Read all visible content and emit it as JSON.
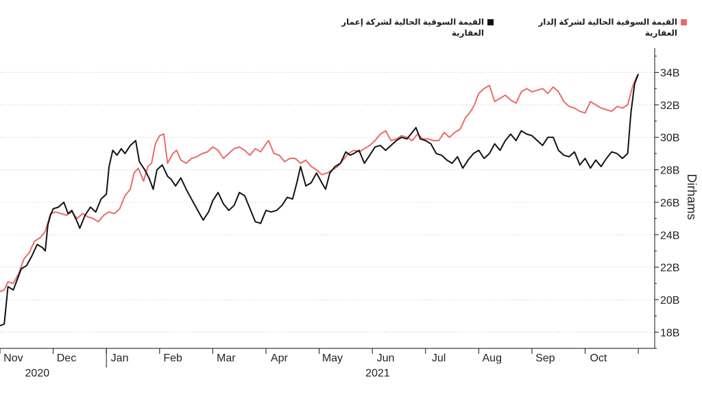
{
  "legend": {
    "black_label": "القيمة السوقية الحالية لشركة إعمار العقارية",
    "red_label": "القيمة السوقية الحالية لشركة إلدار العقارية"
  },
  "colors": {
    "black_series": "#111111",
    "red_series": "#ea6a6a",
    "axis": "#111111"
  },
  "chart_data": {
    "type": "line",
    "title": "",
    "xlabel": "",
    "ylabel": "Dirhams",
    "y_axis_side": "right",
    "ylim": [
      17,
      35.5
    ],
    "xlim": [
      0,
      12.05
    ],
    "x_unit_note": "x measured in months from 1 Nov 2020",
    "y_ticks": [
      18,
      20,
      22,
      24,
      26,
      28,
      30,
      32,
      34
    ],
    "y_tick_labels": [
      "18B",
      "20B",
      "22B",
      "24B",
      "26B",
      "28B",
      "30B",
      "32B",
      "34B"
    ],
    "x_ticks": [
      {
        "x": 0.25,
        "label": "Nov"
      },
      {
        "x": 1.25,
        "label": "Dec"
      },
      {
        "x": 2.25,
        "label": "Jan"
      },
      {
        "x": 3.25,
        "label": "Feb"
      },
      {
        "x": 4.25,
        "label": "Mar"
      },
      {
        "x": 5.25,
        "label": "Apr"
      },
      {
        "x": 6.25,
        "label": "May"
      },
      {
        "x": 7.25,
        "label": "Jun"
      },
      {
        "x": 8.25,
        "label": "Jul"
      },
      {
        "x": 9.25,
        "label": "Aug"
      },
      {
        "x": 10.25,
        "label": "Sep"
      },
      {
        "x": 11.25,
        "label": "Oct"
      }
    ],
    "year_labels": [
      {
        "x": 0.7,
        "label": "2020"
      },
      {
        "x": 7.1,
        "label": "2021"
      }
    ],
    "series": [
      {
        "name": "القيمة السوقية الحالية لشركة إعمار العقارية",
        "color": "#111111",
        "points": [
          [
            0.0,
            18.4
          ],
          [
            0.08,
            18.5
          ],
          [
            0.15,
            20.8
          ],
          [
            0.25,
            20.6
          ],
          [
            0.32,
            21.2
          ],
          [
            0.4,
            21.9
          ],
          [
            0.5,
            22.1
          ],
          [
            0.6,
            22.7
          ],
          [
            0.7,
            23.4
          ],
          [
            0.8,
            23.2
          ],
          [
            0.85,
            23.0
          ],
          [
            0.9,
            24.6
          ],
          [
            0.95,
            25.2
          ],
          [
            1.0,
            25.6
          ],
          [
            1.1,
            25.7
          ],
          [
            1.2,
            26.0
          ],
          [
            1.28,
            25.3
          ],
          [
            1.35,
            25.5
          ],
          [
            1.45,
            24.8
          ],
          [
            1.5,
            24.4
          ],
          [
            1.6,
            25.2
          ],
          [
            1.7,
            25.7
          ],
          [
            1.8,
            25.4
          ],
          [
            1.9,
            26.2
          ],
          [
            2.0,
            26.5
          ],
          [
            2.05,
            28.2
          ],
          [
            2.12,
            29.2
          ],
          [
            2.2,
            28.9
          ],
          [
            2.28,
            29.3
          ],
          [
            2.35,
            29.0
          ],
          [
            2.45,
            29.5
          ],
          [
            2.55,
            29.8
          ],
          [
            2.62,
            28.5
          ],
          [
            2.72,
            28.0
          ],
          [
            2.8,
            27.5
          ],
          [
            2.88,
            26.8
          ],
          [
            2.95,
            28.0
          ],
          [
            3.05,
            28.3
          ],
          [
            3.15,
            27.6
          ],
          [
            3.22,
            27.4
          ],
          [
            3.3,
            27.0
          ],
          [
            3.4,
            27.5
          ],
          [
            3.5,
            26.8
          ],
          [
            3.6,
            26.2
          ],
          [
            3.7,
            25.6
          ],
          [
            3.82,
            24.9
          ],
          [
            3.92,
            25.4
          ],
          [
            4.0,
            26.1
          ],
          [
            4.1,
            26.6
          ],
          [
            4.2,
            25.9
          ],
          [
            4.3,
            25.5
          ],
          [
            4.4,
            25.8
          ],
          [
            4.5,
            26.6
          ],
          [
            4.6,
            26.4
          ],
          [
            4.7,
            25.6
          ],
          [
            4.8,
            24.8
          ],
          [
            4.9,
            24.7
          ],
          [
            5.0,
            25.5
          ],
          [
            5.1,
            25.4
          ],
          [
            5.2,
            25.5
          ],
          [
            5.3,
            25.8
          ],
          [
            5.4,
            26.3
          ],
          [
            5.5,
            26.2
          ],
          [
            5.58,
            27.2
          ],
          [
            5.65,
            28.2
          ],
          [
            5.75,
            27.0
          ],
          [
            5.85,
            27.2
          ],
          [
            5.95,
            27.8
          ],
          [
            6.05,
            27.2
          ],
          [
            6.12,
            26.8
          ],
          [
            6.2,
            27.8
          ],
          [
            6.3,
            28.2
          ],
          [
            6.4,
            28.4
          ],
          [
            6.5,
            29.1
          ],
          [
            6.58,
            28.9
          ],
          [
            6.65,
            29.0
          ],
          [
            6.75,
            29.2
          ],
          [
            6.85,
            28.4
          ],
          [
            6.95,
            28.9
          ],
          [
            7.05,
            29.4
          ],
          [
            7.15,
            29.5
          ],
          [
            7.25,
            29.2
          ],
          [
            7.35,
            29.5
          ],
          [
            7.45,
            29.8
          ],
          [
            7.55,
            30.0
          ],
          [
            7.65,
            29.9
          ],
          [
            7.75,
            30.3
          ],
          [
            7.82,
            30.6
          ],
          [
            7.9,
            29.9
          ],
          [
            8.0,
            29.8
          ],
          [
            8.1,
            29.6
          ],
          [
            8.2,
            29.0
          ],
          [
            8.3,
            28.9
          ],
          [
            8.4,
            28.6
          ],
          [
            8.5,
            28.4
          ],
          [
            8.6,
            28.8
          ],
          [
            8.7,
            28.1
          ],
          [
            8.8,
            28.6
          ],
          [
            8.9,
            29.0
          ],
          [
            9.0,
            29.2
          ],
          [
            9.1,
            28.7
          ],
          [
            9.2,
            29.0
          ],
          [
            9.3,
            29.6
          ],
          [
            9.4,
            29.2
          ],
          [
            9.5,
            29.8
          ],
          [
            9.6,
            30.2
          ],
          [
            9.7,
            29.8
          ],
          [
            9.8,
            30.4
          ],
          [
            9.9,
            30.2
          ],
          [
            10.0,
            30.1
          ],
          [
            10.1,
            29.8
          ],
          [
            10.2,
            29.5
          ],
          [
            10.3,
            30.0
          ],
          [
            10.4,
            30.0
          ],
          [
            10.5,
            29.2
          ],
          [
            10.6,
            28.9
          ],
          [
            10.7,
            28.8
          ],
          [
            10.8,
            29.1
          ],
          [
            10.9,
            28.3
          ],
          [
            11.0,
            28.7
          ],
          [
            11.1,
            28.1
          ],
          [
            11.2,
            28.6
          ],
          [
            11.3,
            28.2
          ],
          [
            11.4,
            28.7
          ],
          [
            11.5,
            29.1
          ],
          [
            11.6,
            29.0
          ],
          [
            11.7,
            28.7
          ],
          [
            11.8,
            29.0
          ],
          [
            11.86,
            31.5
          ],
          [
            11.93,
            33.3
          ],
          [
            12.0,
            33.9
          ]
        ]
      },
      {
        "name": "القيمة السوقية الحالية لشركة إلدار العقارية",
        "color": "#ea6a6a",
        "points": [
          [
            0.0,
            20.5
          ],
          [
            0.08,
            20.6
          ],
          [
            0.15,
            21.1
          ],
          [
            0.25,
            21.0
          ],
          [
            0.35,
            21.6
          ],
          [
            0.45,
            22.5
          ],
          [
            0.55,
            22.9
          ],
          [
            0.65,
            23.6
          ],
          [
            0.75,
            23.8
          ],
          [
            0.85,
            24.2
          ],
          [
            0.95,
            25.3
          ],
          [
            1.05,
            25.4
          ],
          [
            1.15,
            25.3
          ],
          [
            1.25,
            25.2
          ],
          [
            1.35,
            25.4
          ],
          [
            1.45,
            25.0
          ],
          [
            1.55,
            25.3
          ],
          [
            1.65,
            25.1
          ],
          [
            1.75,
            25.0
          ],
          [
            1.85,
            24.8
          ],
          [
            1.95,
            25.2
          ],
          [
            2.05,
            25.4
          ],
          [
            2.15,
            25.3
          ],
          [
            2.25,
            25.6
          ],
          [
            2.35,
            26.4
          ],
          [
            2.45,
            26.8
          ],
          [
            2.52,
            27.8
          ],
          [
            2.6,
            28.1
          ],
          [
            2.7,
            27.3
          ],
          [
            2.78,
            28.2
          ],
          [
            2.85,
            28.4
          ],
          [
            2.92,
            29.6
          ],
          [
            3.0,
            30.1
          ],
          [
            3.08,
            30.2
          ],
          [
            3.15,
            28.4
          ],
          [
            3.25,
            29.0
          ],
          [
            3.32,
            29.2
          ],
          [
            3.4,
            28.6
          ],
          [
            3.5,
            28.4
          ],
          [
            3.6,
            28.7
          ],
          [
            3.7,
            28.8
          ],
          [
            3.8,
            29.0
          ],
          [
            3.9,
            29.1
          ],
          [
            4.0,
            29.4
          ],
          [
            4.1,
            29.2
          ],
          [
            4.2,
            28.7
          ],
          [
            4.3,
            29.0
          ],
          [
            4.4,
            29.3
          ],
          [
            4.5,
            29.4
          ],
          [
            4.6,
            29.2
          ],
          [
            4.7,
            28.9
          ],
          [
            4.8,
            29.3
          ],
          [
            4.9,
            29.1
          ],
          [
            5.0,
            29.6
          ],
          [
            5.05,
            29.8
          ],
          [
            5.15,
            29.0
          ],
          [
            5.25,
            28.9
          ],
          [
            5.35,
            28.5
          ],
          [
            5.45,
            28.7
          ],
          [
            5.55,
            28.7
          ],
          [
            5.65,
            28.4
          ],
          [
            5.75,
            28.6
          ],
          [
            5.85,
            28.2
          ],
          [
            5.95,
            28.0
          ],
          [
            6.05,
            27.7
          ],
          [
            6.15,
            27.8
          ],
          [
            6.25,
            28.0
          ],
          [
            6.35,
            28.2
          ],
          [
            6.45,
            28.6
          ],
          [
            6.55,
            29.0
          ],
          [
            6.65,
            29.2
          ],
          [
            6.75,
            29.1
          ],
          [
            6.85,
            29.3
          ],
          [
            6.95,
            29.5
          ],
          [
            7.05,
            29.8
          ],
          [
            7.15,
            30.2
          ],
          [
            7.25,
            30.4
          ],
          [
            7.35,
            29.8
          ],
          [
            7.45,
            29.9
          ],
          [
            7.55,
            30.1
          ],
          [
            7.65,
            30.0
          ],
          [
            7.75,
            29.8
          ],
          [
            7.85,
            30.2
          ],
          [
            7.95,
            29.9
          ],
          [
            8.05,
            29.9
          ],
          [
            8.15,
            29.8
          ],
          [
            8.25,
            29.8
          ],
          [
            8.35,
            30.3
          ],
          [
            8.45,
            30.0
          ],
          [
            8.55,
            30.3
          ],
          [
            8.65,
            30.5
          ],
          [
            8.75,
            31.2
          ],
          [
            8.85,
            31.6
          ],
          [
            8.92,
            32.0
          ],
          [
            9.0,
            32.7
          ],
          [
            9.1,
            33.0
          ],
          [
            9.2,
            33.2
          ],
          [
            9.3,
            32.2
          ],
          [
            9.4,
            32.4
          ],
          [
            9.5,
            32.6
          ],
          [
            9.6,
            32.3
          ],
          [
            9.7,
            32.1
          ],
          [
            9.8,
            32.8
          ],
          [
            9.9,
            33.0
          ],
          [
            10.0,
            32.8
          ],
          [
            10.1,
            32.9
          ],
          [
            10.2,
            33.0
          ],
          [
            10.3,
            32.7
          ],
          [
            10.4,
            33.1
          ],
          [
            10.5,
            32.8
          ],
          [
            10.6,
            32.2
          ],
          [
            10.7,
            31.9
          ],
          [
            10.8,
            31.8
          ],
          [
            10.9,
            31.6
          ],
          [
            11.0,
            31.5
          ],
          [
            11.1,
            32.2
          ],
          [
            11.2,
            32.0
          ],
          [
            11.3,
            31.8
          ],
          [
            11.4,
            31.7
          ],
          [
            11.5,
            31.6
          ],
          [
            11.6,
            31.9
          ],
          [
            11.7,
            31.8
          ],
          [
            11.8,
            32.0
          ],
          [
            11.88,
            33.0
          ],
          [
            11.95,
            33.6
          ],
          [
            12.0,
            33.9
          ]
        ]
      }
    ],
    "grid": "horizontal-dotted",
    "legend_position": "top-right"
  }
}
